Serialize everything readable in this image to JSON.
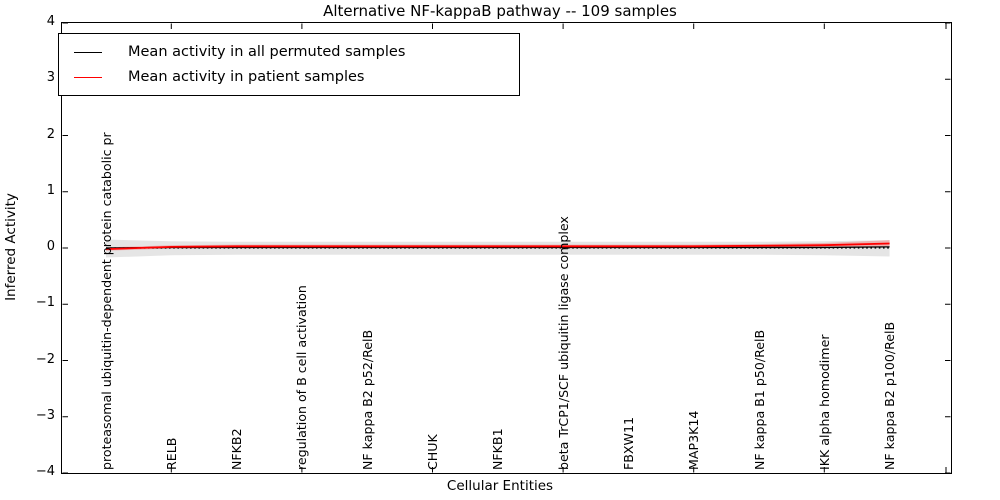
{
  "chart_data": {
    "type": "line",
    "title": "Alternative NF-kappaB pathway -- 109 samples",
    "xlabel": "Cellular Entities",
    "ylabel": "Inferred Activity",
    "ylim": [
      -4,
      4
    ],
    "y_ticks": [
      4,
      3,
      2,
      1,
      0,
      -1,
      -2,
      -3,
      -4
    ],
    "y_tick_labels": [
      "4",
      "3",
      "2",
      "1",
      "0",
      "−1",
      "−2",
      "−3",
      "−4"
    ],
    "grid": false,
    "legend_position": "upper left",
    "categories": [
      "proteasomal ubiquitin-dependent protein catabolic pr",
      "RELB",
      "NFKB2",
      "regulation of B cell activation",
      "NF kappa B2 p52/RelB",
      "CHUK",
      "NFKB1",
      "beta TrCP1/SCF ubiquitin ligase complex",
      "FBXW11",
      "MAP3K14",
      "NF kappa B1 p50/RelB",
      "IKK alpha homodimer",
      "NF kappa B2 p100/RelB"
    ],
    "series": [
      {
        "name": "Mean activity in all permuted samples",
        "color": "#000000",
        "values": [
          0.0,
          0.01,
          0.01,
          0.01,
          0.01,
          0.01,
          0.01,
          0.01,
          0.01,
          0.01,
          0.01,
          0.01,
          0.02
        ],
        "band_upper": [
          0.15,
          0.12,
          0.11,
          0.11,
          0.11,
          0.11,
          0.11,
          0.11,
          0.11,
          0.11,
          0.11,
          0.12,
          0.14
        ],
        "band_lower": [
          -0.17,
          -0.13,
          -0.12,
          -0.12,
          -0.12,
          -0.12,
          -0.12,
          -0.12,
          -0.12,
          -0.12,
          -0.12,
          -0.13,
          -0.15
        ],
        "band_color": "rgba(0,0,0,0.10)"
      },
      {
        "name": "Mean activity in patient samples",
        "color": "#ff0000",
        "values": [
          -0.02,
          0.02,
          0.03,
          0.03,
          0.03,
          0.03,
          0.03,
          0.03,
          0.03,
          0.03,
          0.04,
          0.05,
          0.08
        ],
        "band_upper": [
          0.01,
          0.05,
          0.06,
          0.06,
          0.06,
          0.06,
          0.06,
          0.06,
          0.06,
          0.06,
          0.07,
          0.09,
          0.14
        ],
        "band_lower": [
          -0.05,
          -0.01,
          0.0,
          0.0,
          0.0,
          0.0,
          0.0,
          0.0,
          0.0,
          0.0,
          0.01,
          0.01,
          0.03
        ],
        "band_color": "rgba(255,0,0,0.22)"
      }
    ],
    "zero_line": {
      "y": 0,
      "style": "dotted",
      "color": "#000000"
    }
  },
  "legend": {
    "items": [
      {
        "label": "Mean activity in all permuted samples",
        "color": "#000000"
      },
      {
        "label": "Mean activity in patient samples",
        "color": "#ff0000"
      }
    ]
  }
}
